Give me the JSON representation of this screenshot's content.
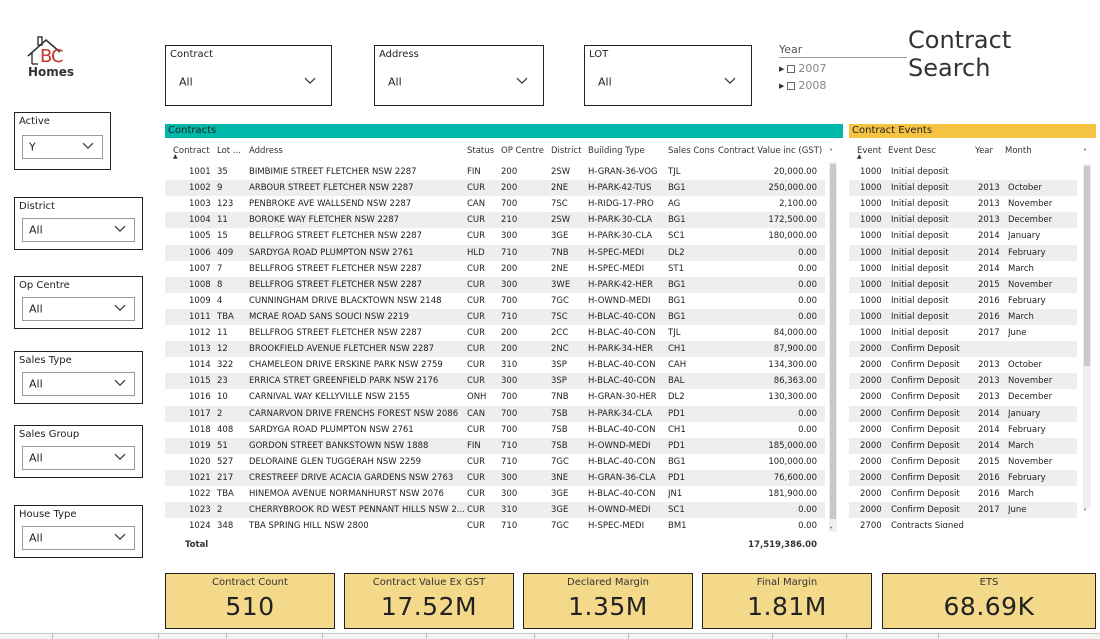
{
  "logo": {
    "text_top": "BC",
    "text_bottom": "Homes",
    "icon": "house-icon"
  },
  "page_title": "Contract Search",
  "top_slicers": [
    {
      "label": "Contract",
      "value": "All"
    },
    {
      "label": "Address",
      "value": "All"
    },
    {
      "label": "LOT",
      "value": "All"
    }
  ],
  "year_slicer": {
    "label": "Year",
    "items": [
      "2007",
      "2008"
    ]
  },
  "left_slicers": [
    {
      "label": "Active",
      "value": "Y"
    },
    {
      "label": "District",
      "value": "All"
    },
    {
      "label": "Op Centre",
      "value": "All"
    },
    {
      "label": "Sales Type",
      "value": "All"
    },
    {
      "label": "Sales Group",
      "value": "All"
    },
    {
      "label": "House Type",
      "value": "All"
    }
  ],
  "colors": {
    "contracts_bar": "#00b8aa",
    "events_bar": "#f5c342",
    "kpi_bg": "#f4d98a",
    "row_alt": "#eeeeee"
  },
  "contracts": {
    "title": "Contracts",
    "columns": [
      "Contract",
      "Lot ...",
      "Address",
      "Status",
      "OP Centre",
      "District",
      "Building Type",
      "Sales Cons",
      "Contract Value inc (GST)"
    ],
    "rows": [
      [
        "1001",
        "35",
        "BIMBIMIE STREET  FLETCHER NSW 2287",
        "FIN",
        "200",
        "2SW",
        "H-GRAN-36-VOG",
        "TJL",
        "20,000.00"
      ],
      [
        "1002",
        "9",
        "ARBOUR STREET  FLETCHER NSW 2287",
        "CUR",
        "200",
        "2NE",
        "H-PARK-42-TUS",
        "BG1",
        "250,000.00"
      ],
      [
        "1003",
        "123",
        "PENBROKE AVE  WALLSEND NSW 2287",
        "CAN",
        "700",
        "7SC",
        "H-RIDG-17-PRO",
        "AG",
        "2,100.00"
      ],
      [
        "1004",
        "11",
        "BOROKE WAY  FLETCHER NSW 2287",
        "CUR",
        "210",
        "2SW",
        "H-PARK-30-CLA",
        "BG1",
        "172,500.00"
      ],
      [
        "1005",
        "15",
        "BELLFROG STREET  FLETCHER NSW 2287",
        "CUR",
        "300",
        "3GE",
        "H-PARK-30-CLA",
        "SC1",
        "180,000.00"
      ],
      [
        "1006",
        "409",
        "SARDYGA ROAD  PLUMPTON NSW 2761",
        "HLD",
        "710",
        "7NB",
        "H-SPEC-MEDI",
        "DL2",
        "0.00"
      ],
      [
        "1007",
        "7",
        "BELLFROG STREET  FLETCHER NSW 2287",
        "CUR",
        "200",
        "2NE",
        "H-SPEC-MEDI",
        "ST1",
        "0.00"
      ],
      [
        "1008",
        "8",
        "BELLFROG STREET  FLETCHER NSW 2287",
        "CUR",
        "300",
        "3WE",
        "H-PARK-42-HER",
        "BG1",
        "0.00"
      ],
      [
        "1009",
        "4",
        "CUNNINGHAM DRIVE  BLACKTOWN NSW 2148",
        "CUR",
        "700",
        "7GC",
        "H-OWND-MEDI",
        "BG1",
        "0.00"
      ],
      [
        "1011",
        "TBA",
        "MCRAE ROAD  SANS SOUCI NSW 2219",
        "CUR",
        "710",
        "7SC",
        "H-BLAC-40-CON",
        "BG1",
        "0.00"
      ],
      [
        "1012",
        "11",
        "BELLFROG STREET  FLETCHER NSW 2287",
        "CUR",
        "200",
        "2CC",
        "H-BLAC-40-CON",
        "TJL",
        "84,000.00"
      ],
      [
        "1013",
        "12",
        "BROOKFIELD AVENUE  FLETCHER NSW 2287",
        "CUR",
        "200",
        "2NC",
        "H-PARK-34-HER",
        "CH1",
        "87,900.00"
      ],
      [
        "1014",
        "322",
        "CHAMELEON DRIVE  ERSKINE PARK NSW 2759",
        "CUR",
        "310",
        "3SP",
        "H-BLAC-40-CON",
        "CAH",
        "134,300.00"
      ],
      [
        "1015",
        "23",
        "ERRICA STRET  GREENFIELD PARK NSW 2176",
        "CUR",
        "300",
        "3SP",
        "H-BLAC-40-CON",
        "BAL",
        "86,363.00"
      ],
      [
        "1016",
        "10",
        "CARNIVAL WAY  KELLYVILLE NSW 2155",
        "ONH",
        "700",
        "7NB",
        "H-GRAN-30-HER",
        "DL2",
        "130,300.00"
      ],
      [
        "1017",
        "2",
        "CARNARVON DRIVE  FRENCHS FOREST NSW 2086",
        "CAN",
        "700",
        "7SB",
        "H-PARK-34-CLA",
        "PD1",
        "0.00"
      ],
      [
        "1018",
        "408",
        "SARDYGA ROAD  PLUMPTON NSW 2761",
        "CUR",
        "700",
        "7SB",
        "H-BLAC-40-CON",
        "CH1",
        "0.00"
      ],
      [
        "1019",
        "51",
        "GORDON STREET  BANKSTOWN NSW 1888",
        "FIN",
        "710",
        "7SB",
        "H-OWND-MEDI",
        "PD1",
        "185,000.00"
      ],
      [
        "1020",
        "527",
        "DELORAINE GLEN  TUGGERAH NSW 2259",
        "CUR",
        "710",
        "7GC",
        "H-BLAC-40-CON",
        "BG1",
        "100,000.00"
      ],
      [
        "1021",
        "217",
        "CRESTREEF DRIVE  ACACIA GARDENS NSW 2763",
        "CUR",
        "300",
        "3NE",
        "H-GRAN-36-CLA",
        "PD1",
        "76,600.00"
      ],
      [
        "1022",
        "TBA",
        "HINEMOA AVENUE  NORMANHURST NSW 2076",
        "CUR",
        "300",
        "3GE",
        "H-BLAC-40-CON",
        "JN1",
        "181,900.00"
      ],
      [
        "1023",
        "2",
        "CHERRYBROOK RD  WEST PENNANT HILLS NSW 2...",
        "CUR",
        "310",
        "3GE",
        "H-OWND-MEDI",
        "SC1",
        "0.00"
      ],
      [
        "1024",
        "348",
        "TBA  SPRING HILL NSW 2800",
        "CUR",
        "710",
        "7GC",
        "H-SPEC-MEDI",
        "BM1",
        "0.00"
      ]
    ],
    "total_label": "Total",
    "total_value": "17,519,386.00"
  },
  "events": {
    "title": "Contract Events",
    "columns": [
      "Event",
      "Event Desc",
      "Year",
      "Month"
    ],
    "rows": [
      [
        "1000",
        "Initial deposit",
        "",
        ""
      ],
      [
        "1000",
        "Initial deposit",
        "2013",
        "October"
      ],
      [
        "1000",
        "Initial deposit",
        "2013",
        "November"
      ],
      [
        "1000",
        "Initial deposit",
        "2013",
        "December"
      ],
      [
        "1000",
        "Initial deposit",
        "2014",
        "January"
      ],
      [
        "1000",
        "Initial deposit",
        "2014",
        "February"
      ],
      [
        "1000",
        "Initial deposit",
        "2014",
        "March"
      ],
      [
        "1000",
        "Initial deposit",
        "2015",
        "November"
      ],
      [
        "1000",
        "Initial deposit",
        "2016",
        "February"
      ],
      [
        "1000",
        "Initial deposit",
        "2016",
        "March"
      ],
      [
        "1000",
        "Initial deposit",
        "2017",
        "June"
      ],
      [
        "2000",
        "Confirm Deposit",
        "",
        ""
      ],
      [
        "2000",
        "Confirm Deposit",
        "2013",
        "October"
      ],
      [
        "2000",
        "Confirm Deposit",
        "2013",
        "November"
      ],
      [
        "2000",
        "Confirm Deposit",
        "2013",
        "December"
      ],
      [
        "2000",
        "Confirm Deposit",
        "2014",
        "January"
      ],
      [
        "2000",
        "Confirm Deposit",
        "2014",
        "February"
      ],
      [
        "2000",
        "Confirm Deposit",
        "2014",
        "March"
      ],
      [
        "2000",
        "Confirm Deposit",
        "2015",
        "November"
      ],
      [
        "2000",
        "Confirm Deposit",
        "2016",
        "February"
      ],
      [
        "2000",
        "Confirm Deposit",
        "2016",
        "March"
      ],
      [
        "2000",
        "Confirm Deposit",
        "2017",
        "June"
      ],
      [
        "2700",
        "Contracts Signed",
        "",
        ""
      ]
    ]
  },
  "kpis": [
    {
      "label": "Contract Count",
      "value": "510"
    },
    {
      "label": "Contract Value Ex GST",
      "value": "17.52M"
    },
    {
      "label": "Declared Margin",
      "value": "1.35M"
    },
    {
      "label": "Final Margin",
      "value": "1.81M"
    },
    {
      "label": "ETS",
      "value": "68.69K"
    }
  ]
}
